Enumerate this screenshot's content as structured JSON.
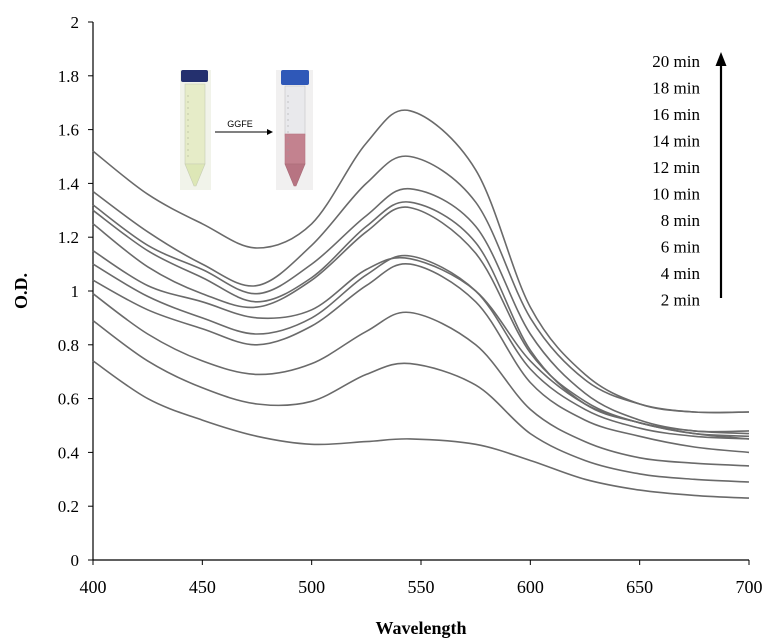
{
  "chart_data": {
    "type": "line",
    "title": "",
    "xlabel": "Wavelength",
    "ylabel": "O.D.",
    "xlim": [
      400,
      700
    ],
    "ylim": [
      0,
      2
    ],
    "x_ticks": [
      400,
      450,
      500,
      550,
      600,
      650,
      700
    ],
    "y_ticks": [
      "0",
      "0.2",
      "0.4",
      "0.6",
      "0.8",
      "1",
      "1.2",
      "1.4",
      "1.6",
      "1.8",
      "2"
    ],
    "grid": false,
    "line_color": "#6a6a6a",
    "x": [
      400,
      425,
      450,
      475,
      500,
      525,
      545,
      575,
      600,
      625,
      650,
      675,
      700
    ],
    "series": [
      {
        "values": [
          0.74,
          0.6,
          0.52,
          0.46,
          0.43,
          0.44,
          0.45,
          0.43,
          0.37,
          0.3,
          0.26,
          0.24,
          0.23
        ]
      },
      {
        "values": [
          0.89,
          0.74,
          0.64,
          0.58,
          0.59,
          0.69,
          0.73,
          0.65,
          0.47,
          0.37,
          0.32,
          0.3,
          0.29
        ]
      },
      {
        "values": [
          0.99,
          0.84,
          0.74,
          0.69,
          0.73,
          0.85,
          0.92,
          0.8,
          0.56,
          0.44,
          0.38,
          0.36,
          0.35
        ]
      },
      {
        "values": [
          1.04,
          0.93,
          0.86,
          0.8,
          0.87,
          1.02,
          1.1,
          0.96,
          0.66,
          0.52,
          0.46,
          0.42,
          0.4
        ]
      },
      {
        "values": [
          1.1,
          0.98,
          0.9,
          0.84,
          0.9,
          1.06,
          1.13,
          1.0,
          0.71,
          0.56,
          0.49,
          0.46,
          0.45
        ]
      },
      {
        "values": [
          1.15,
          1.02,
          0.96,
          0.9,
          0.93,
          1.08,
          1.12,
          1.0,
          0.74,
          0.58,
          0.51,
          0.47,
          0.46
        ]
      },
      {
        "values": [
          1.25,
          1.09,
          0.99,
          0.94,
          1.04,
          1.22,
          1.31,
          1.14,
          0.77,
          0.59,
          0.51,
          0.48,
          0.47
        ]
      },
      {
        "values": [
          1.3,
          1.15,
          1.05,
          0.96,
          1.05,
          1.24,
          1.33,
          1.18,
          0.78,
          0.58,
          0.51,
          0.47,
          0.45
        ]
      },
      {
        "values": [
          1.32,
          1.17,
          1.08,
          0.99,
          1.1,
          1.28,
          1.38,
          1.24,
          0.84,
          0.62,
          0.52,
          0.48,
          0.48
        ]
      },
      {
        "values": [
          1.37,
          1.22,
          1.1,
          1.02,
          1.17,
          1.4,
          1.5,
          1.33,
          0.9,
          0.67,
          0.58,
          0.55,
          0.55
        ]
      },
      {
        "values": [
          1.52,
          1.36,
          1.25,
          1.16,
          1.25,
          1.55,
          1.67,
          1.45,
          0.94,
          0.69,
          0.58,
          0.55,
          0.55
        ]
      }
    ],
    "annotations": {
      "time_labels": [
        "20 min",
        "18 min",
        "16 min",
        "14 min",
        "12 min",
        "10 min",
        "8 min",
        "6 min",
        "4 min",
        "2 min"
      ],
      "arrow": "increasing time, bottom to top",
      "inset": {
        "label": "GGFE",
        "left_tube": "pale yellow solution",
        "right_tube": "red-purple solution"
      }
    }
  }
}
